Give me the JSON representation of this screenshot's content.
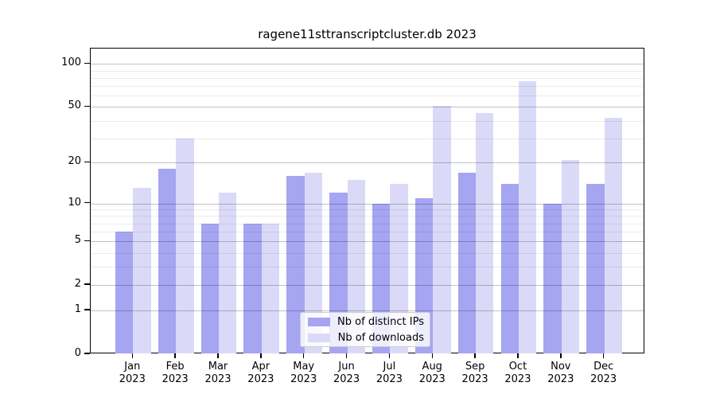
{
  "title": "ragene11sttranscriptcluster.db 2023",
  "chart_data": {
    "type": "bar",
    "title": "ragene11sttranscriptcluster.db 2023",
    "categories": [
      "Jan",
      "Feb",
      "Mar",
      "Apr",
      "May",
      "Jun",
      "Jul",
      "Aug",
      "Sep",
      "Oct",
      "Nov",
      "Dec"
    ],
    "year_label": "2023",
    "series": [
      {
        "name": "Nb of distinct IPs",
        "color": "#a5a5f2",
        "values": [
          6,
          18,
          7,
          7,
          16,
          12,
          10,
          11,
          17,
          14,
          10,
          14
        ]
      },
      {
        "name": "Nb of downloads",
        "color": "#dadaf8",
        "values": [
          13,
          30,
          12,
          7,
          17,
          15,
          14,
          51,
          45,
          76,
          21,
          42
        ]
      }
    ],
    "xlabel": "",
    "ylabel": "",
    "y_axis": {
      "scale": "log1p",
      "tick_values": [
        0,
        1,
        2,
        5,
        10,
        20,
        50,
        100
      ],
      "tick_labels": [
        "0",
        "1",
        "2",
        "5",
        "10",
        "20",
        "50",
        "100"
      ],
      "ylim": [
        0,
        128
      ],
      "minor_gridlines": [
        3,
        4,
        6,
        7,
        8,
        9,
        30,
        40,
        60,
        70,
        80,
        90
      ]
    },
    "grid": "on",
    "legend_position": "lower center"
  },
  "legend_note": {
    "series_0_label": "Nb of distinct IPs",
    "series_1_label": "Nb of downloads"
  }
}
